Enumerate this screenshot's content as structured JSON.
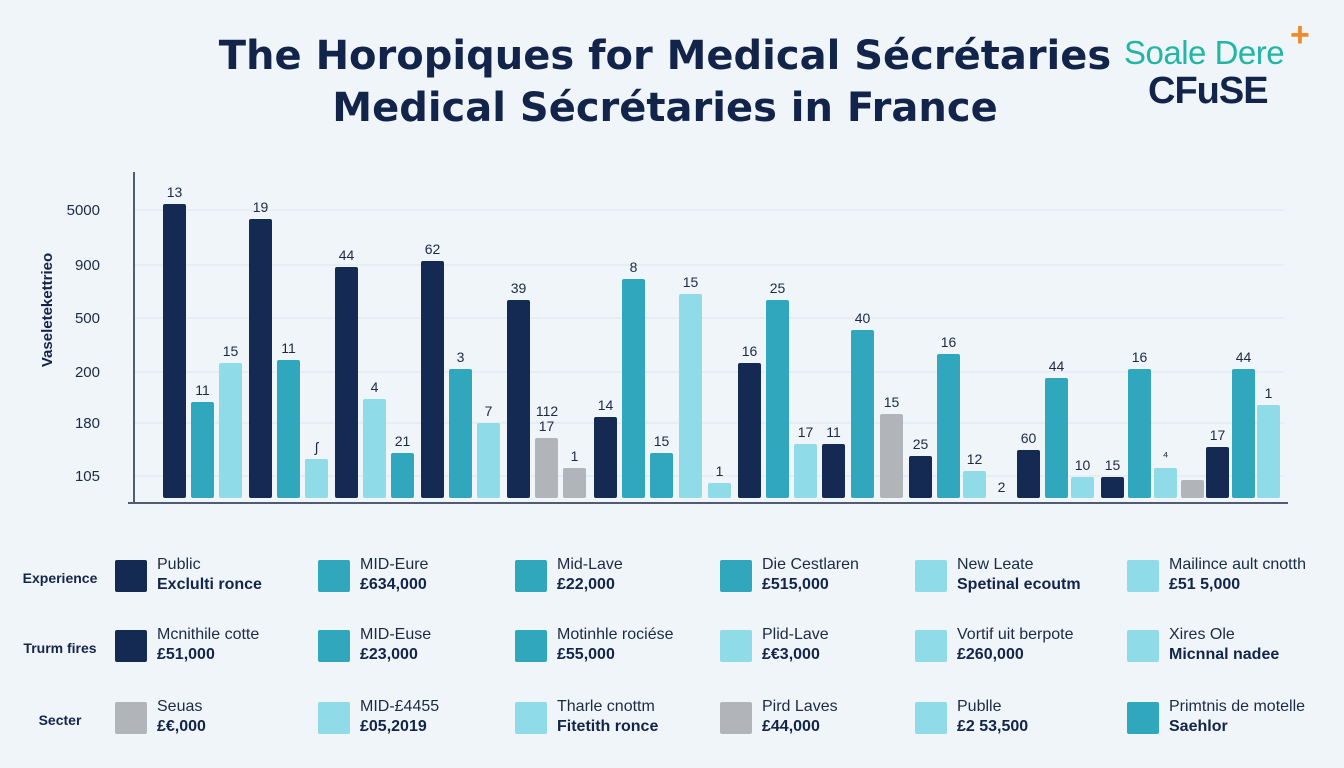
{
  "title": {
    "line1": "The Horopiques for Medical Sécrétaries",
    "line2": "Medical Sécrétaries in France"
  },
  "logo": {
    "line1": "Soale Dere",
    "line2": "CFuSE",
    "plus": "+"
  },
  "colors": {
    "navy": "#152a52",
    "teal": "#30a7bc",
    "light": "#8fdbe8",
    "gray": "#b1b4b8",
    "background": "#eff5f8"
  },
  "chart_data": {
    "type": "bar",
    "ylabel": "Vaseletekettrieo",
    "ytick_labels": [
      "5000",
      "900",
      "500",
      "200",
      "180",
      "105"
    ],
    "grid": true,
    "bars": [
      {
        "group": 1,
        "color": "navy",
        "label": "13",
        "level": 0.98
      },
      {
        "group": 1,
        "color": "teal",
        "label": "11",
        "level": 0.32
      },
      {
        "group": 1,
        "color": "light",
        "label": "15",
        "level": 0.45
      },
      {
        "group": 2,
        "color": "navy",
        "label": "19",
        "level": 0.93
      },
      {
        "group": 2,
        "color": "teal",
        "label": "11",
        "level": 0.46
      },
      {
        "group": 2,
        "color": "light",
        "label": "ʃ",
        "level": 0.13
      },
      {
        "group": 3,
        "color": "navy",
        "label": "44",
        "level": 0.77
      },
      {
        "group": 3,
        "color": "light",
        "label": "4",
        "level": 0.33
      },
      {
        "group": 3,
        "color": "teal",
        "label": "21",
        "level": 0.15
      },
      {
        "group": 4,
        "color": "navy",
        "label": "62",
        "level": 0.79
      },
      {
        "group": 4,
        "color": "teal",
        "label": "3",
        "level": 0.43
      },
      {
        "group": 4,
        "color": "light",
        "label": "7",
        "level": 0.25
      },
      {
        "group": 5,
        "color": "navy",
        "label": "39",
        "level": 0.66
      },
      {
        "group": 5,
        "color": "gray",
        "label": "17",
        "level": 0.2
      },
      {
        "group": 5,
        "color": "gray",
        "label": "1",
        "level": 0.1
      },
      {
        "group": 6,
        "color": "navy",
        "label": "14",
        "level": 0.27
      },
      {
        "group": 6,
        "color": "teal",
        "label": "8",
        "level": 0.73
      },
      {
        "group": 6,
        "color": "teal",
        "label": "15",
        "level": 0.15
      },
      {
        "group": 7,
        "color": "light",
        "label": "15",
        "level": 0.68
      },
      {
        "group": 7,
        "color": "light",
        "label": "1",
        "level": 0.05
      },
      {
        "group": 8,
        "color": "navy",
        "label": "16",
        "level": 0.45
      },
      {
        "group": 8,
        "color": "teal",
        "label": "25",
        "level": 0.66
      },
      {
        "group": 8,
        "color": "light",
        "label": "17",
        "level": 0.18
      },
      {
        "group": 9,
        "color": "navy",
        "label": "11",
        "level": 0.18
      },
      {
        "group": 9,
        "color": "teal",
        "label": "40",
        "level": 0.56
      },
      {
        "group": 9,
        "color": "gray",
        "label": "15",
        "level": 0.28
      },
      {
        "group": 10,
        "color": "navy",
        "label": "25",
        "level": 0.14
      },
      {
        "group": 10,
        "color": "teal",
        "label": "16",
        "level": 0.48
      },
      {
        "group": 10,
        "color": "light",
        "label": "12",
        "level": 0.09
      },
      {
        "group": 11,
        "color": "navy",
        "label": "2",
        "level": 0.0
      },
      {
        "group": 11,
        "color": "navy",
        "label": "60",
        "level": 0.16
      },
      {
        "group": 11,
        "color": "teal",
        "label": "44",
        "level": 0.4
      },
      {
        "group": 11,
        "color": "light",
        "label": "10",
        "level": 0.07
      },
      {
        "group": 12,
        "color": "navy",
        "label": "15",
        "level": 0.07
      },
      {
        "group": 12,
        "color": "teal",
        "label": "16",
        "level": 0.43
      },
      {
        "group": 12,
        "color": "light",
        "label": "⁴",
        "level": 0.1
      },
      {
        "group": 12,
        "color": "gray",
        "label": "",
        "level": 0.06
      },
      {
        "group": 13,
        "color": "navy",
        "label": "17",
        "level": 0.17
      },
      {
        "group": 13,
        "color": "teal",
        "label": "44",
        "level": 0.43
      },
      {
        "group": 13,
        "color": "light",
        "label": "1",
        "level": 0.31
      }
    ],
    "floating_labels": [
      "112"
    ]
  },
  "legend": {
    "rows": [
      {
        "label": "Experience",
        "items": [
          {
            "color": "navy",
            "line1": "Public",
            "line2": "Exclulti ronce"
          },
          {
            "color": "teal",
            "line1": "MID-Eure",
            "line2": "£634,000"
          },
          {
            "color": "teal",
            "line1": "Mid-Lave",
            "line2": "£22,000"
          },
          {
            "color": "teal",
            "line1": "Die Cestlaren",
            "line2": "£515,000"
          },
          {
            "color": "light",
            "line1": "New Leate",
            "line2": "Spetinal ecoutm"
          },
          {
            "color": "light",
            "line1": "Mailince ault cnotth",
            "line2": "£51 5,000"
          }
        ]
      },
      {
        "label": "Trurm fires",
        "items": [
          {
            "color": "navy",
            "line1": "Mcnithile cotte",
            "line2": "£51,000"
          },
          {
            "color": "teal",
            "line1": "MID-Euse",
            "line2": "£23,000"
          },
          {
            "color": "teal",
            "line1": "Motinhle rociése",
            "line2": "£55,000"
          },
          {
            "color": "light",
            "line1": "Plid-Lave",
            "line2": "£€3,000"
          },
          {
            "color": "light",
            "line1": "Vortif uit berpote",
            "line2": "£260,000"
          },
          {
            "color": "light",
            "line1": "Xires Ole",
            "line2": "Micnnal nadee"
          }
        ]
      },
      {
        "label": "Secter",
        "items": [
          {
            "color": "gray",
            "line1": "Seuas",
            "line2": "£€,000"
          },
          {
            "color": "light",
            "line1": "MID-£4455",
            "line2": "£05,2019"
          },
          {
            "color": "light",
            "line1": "Tharle cnottm",
            "line2": "Fitetith ronce"
          },
          {
            "color": "gray",
            "line1": "Pird Laves",
            "line2": "£44,000"
          },
          {
            "color": "light",
            "line1": "Publle",
            "line2": "£2 53,500"
          },
          {
            "color": "teal",
            "line1": "Primtnis de motelle",
            "line2": "Saehlor"
          }
        ]
      }
    ]
  }
}
